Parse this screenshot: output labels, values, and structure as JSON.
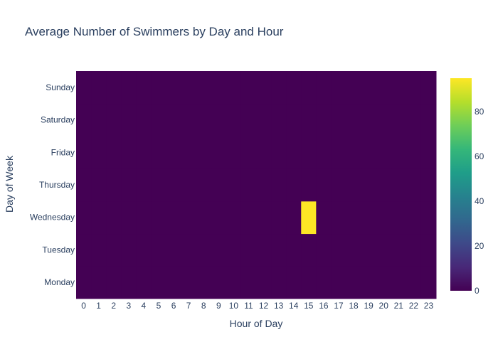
{
  "chart_data": {
    "type": "heatmap",
    "title": "Average Number of Swimmers by Day and Hour",
    "xlabel": "Hour of Day",
    "ylabel": "Day of Week",
    "x": [
      "0",
      "1",
      "2",
      "3",
      "4",
      "5",
      "6",
      "7",
      "8",
      "9",
      "10",
      "11",
      "12",
      "13",
      "14",
      "15",
      "16",
      "17",
      "18",
      "19",
      "20",
      "21",
      "22",
      "23"
    ],
    "y": [
      "Monday",
      "Tuesday",
      "Wednesday",
      "Thursday",
      "Friday",
      "Saturday",
      "Sunday"
    ],
    "z": [
      [
        0,
        0,
        0,
        0,
        0,
        0,
        0,
        0,
        0,
        0,
        0,
        0,
        0,
        0,
        0,
        0,
        0,
        0,
        0,
        0,
        0,
        0,
        0,
        0
      ],
      [
        0,
        0,
        0,
        0,
        0,
        0,
        0,
        0,
        0,
        0,
        0,
        0,
        0,
        0,
        0,
        0,
        0,
        0,
        0,
        0,
        0,
        0,
        0,
        0
      ],
      [
        0,
        0,
        0,
        0,
        0,
        0,
        0,
        0,
        0,
        0,
        0,
        0,
        0,
        0,
        0,
        95,
        0,
        0,
        0,
        0,
        0,
        0,
        0,
        0
      ],
      [
        0,
        0,
        0,
        0,
        0,
        0,
        0,
        0,
        0,
        0,
        0,
        0,
        0,
        0,
        0,
        0,
        0,
        0,
        0,
        0,
        0,
        0,
        0,
        0
      ],
      [
        0,
        0,
        0,
        0,
        0,
        0,
        0,
        0,
        0,
        0,
        0,
        0,
        0,
        0,
        0,
        0,
        0,
        0,
        0,
        0,
        0,
        0,
        0,
        0
      ],
      [
        0,
        0,
        0,
        0,
        0,
        0,
        0,
        0,
        0,
        0,
        0,
        0,
        0,
        0,
        0,
        0,
        0,
        0,
        0,
        0,
        0,
        0,
        0,
        0
      ],
      [
        0,
        0,
        0,
        0,
        0,
        0,
        0,
        0,
        0,
        0,
        0,
        0,
        0,
        0,
        0,
        0,
        0,
        0,
        0,
        0,
        0,
        0,
        0,
        0
      ]
    ],
    "zlim": [
      0,
      95
    ],
    "colorscale": "Viridis",
    "colorbar_ticks": [
      0,
      20,
      40,
      60,
      80
    ],
    "colorbar_tick_labels": [
      "0",
      "20",
      "40",
      "60",
      "80"
    ]
  }
}
